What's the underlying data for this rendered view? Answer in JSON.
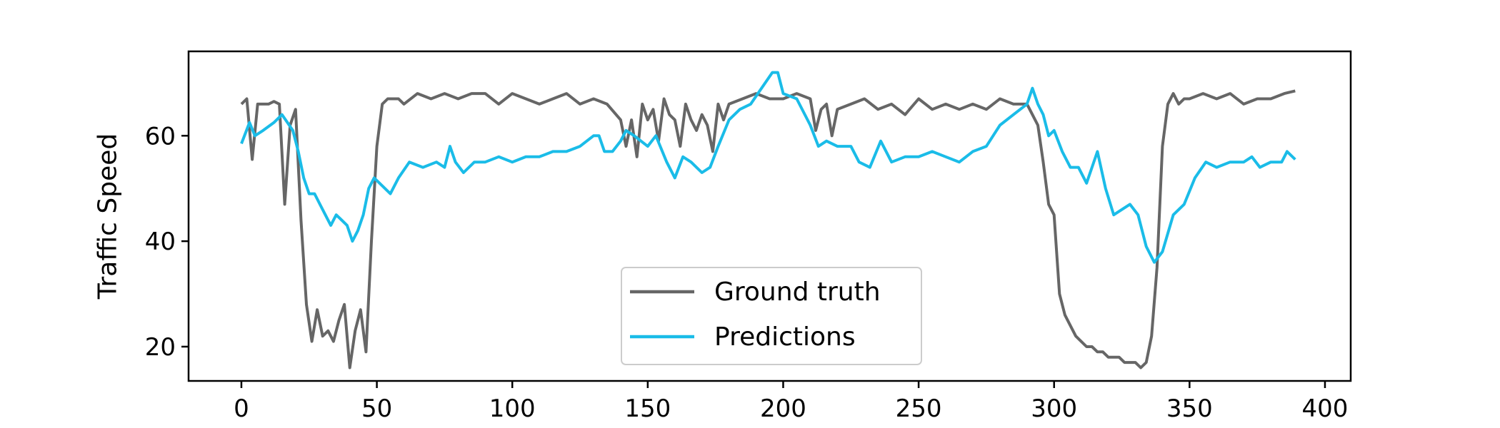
{
  "chart_data": {
    "type": "line",
    "xlabel": "",
    "ylabel": "Traffic Speed",
    "xlim": [
      -19.5,
      409.5
    ],
    "ylim": [
      13.5,
      76
    ],
    "xticks": [
      0,
      50,
      100,
      150,
      200,
      250,
      300,
      350,
      400
    ],
    "yticks": [
      20,
      40,
      60
    ],
    "grid": false,
    "legend_position": "bottom-center",
    "series": [
      {
        "name": "Ground truth",
        "color": "#666666",
        "x": [
          0,
          2,
          4,
          6,
          8,
          10,
          12,
          14,
          16,
          18,
          20,
          22,
          24,
          26,
          28,
          30,
          32,
          34,
          36,
          38,
          40,
          42,
          44,
          46,
          48,
          50,
          52,
          54,
          56,
          58,
          60,
          65,
          70,
          75,
          80,
          85,
          90,
          95,
          100,
          105,
          110,
          115,
          120,
          125,
          130,
          135,
          140,
          142,
          144,
          146,
          148,
          150,
          152,
          154,
          156,
          158,
          160,
          162,
          164,
          166,
          168,
          170,
          172,
          174,
          176,
          178,
          180,
          185,
          190,
          195,
          200,
          205,
          210,
          212,
          214,
          216,
          218,
          220,
          225,
          230,
          235,
          240,
          245,
          250,
          255,
          260,
          265,
          270,
          275,
          280,
          285,
          290,
          292,
          294,
          296,
          298,
          300,
          302,
          304,
          306,
          308,
          310,
          312,
          314,
          316,
          318,
          320,
          322,
          324,
          326,
          328,
          330,
          332,
          334,
          336,
          338,
          340,
          342,
          344,
          346,
          348,
          350,
          355,
          360,
          365,
          370,
          375,
          380,
          385,
          389
        ],
        "values": [
          66,
          67,
          55.5,
          66,
          66,
          66,
          66.5,
          66,
          47,
          62,
          65,
          44,
          28,
          21,
          27,
          22,
          23,
          21,
          25,
          28,
          16,
          23,
          27,
          19,
          40,
          58,
          66,
          67,
          67,
          67,
          66,
          68,
          67,
          68,
          67,
          68,
          68,
          66,
          68,
          67,
          66,
          67,
          68,
          66,
          67,
          66,
          63,
          58,
          63,
          56,
          66,
          63,
          65,
          59,
          67,
          64,
          63,
          58,
          66,
          63,
          61,
          64,
          62,
          57,
          66,
          63,
          66,
          67,
          68,
          67,
          67,
          68,
          67,
          61,
          65,
          66,
          60,
          65,
          66,
          67,
          65,
          66,
          64,
          67,
          65,
          66,
          65,
          66,
          65,
          67,
          66,
          66,
          64,
          62,
          55,
          47,
          45,
          30,
          26,
          24,
          22,
          21,
          20,
          20,
          19,
          19,
          18,
          18,
          18,
          17,
          17,
          17,
          16,
          17,
          22,
          35,
          58,
          66,
          68,
          66,
          67,
          67,
          68,
          67,
          68,
          66,
          67,
          67,
          68,
          68.5
        ]
      },
      {
        "name": "Predictions",
        "color": "#1ABCE8",
        "x": [
          0,
          3,
          5,
          8,
          12,
          15,
          17,
          19,
          21,
          23,
          25,
          27,
          29,
          31,
          33,
          35,
          37,
          39,
          41,
          43,
          45,
          47,
          49,
          51,
          55,
          58,
          62,
          67,
          72,
          75,
          77,
          79,
          82,
          86,
          90,
          95,
          100,
          105,
          110,
          115,
          120,
          125,
          130,
          132,
          134,
          137,
          140,
          142,
          145,
          150,
          153,
          157,
          160,
          163,
          166,
          170,
          173,
          176,
          180,
          184,
          188,
          192,
          196,
          198,
          200,
          205,
          210,
          213,
          216,
          220,
          225,
          228,
          232,
          236,
          240,
          245,
          250,
          255,
          260,
          265,
          270,
          275,
          280,
          285,
          290,
          292,
          294,
          296,
          298,
          300,
          303,
          306,
          309,
          312,
          316,
          319,
          322,
          325,
          328,
          331,
          334,
          337,
          340,
          344,
          348,
          352,
          356,
          360,
          365,
          370,
          373,
          376,
          380,
          384,
          386,
          389
        ],
        "values": [
          58.5,
          62.5,
          60,
          61,
          62.5,
          64,
          62.5,
          61,
          57,
          52,
          49,
          49,
          47,
          45,
          43,
          45,
          44,
          43,
          40,
          42,
          45,
          50,
          52,
          51,
          49,
          52,
          55,
          54,
          55,
          54,
          58,
          55,
          53,
          55,
          55,
          56,
          55,
          56,
          56,
          57,
          57,
          58,
          60,
          60,
          57,
          57,
          59,
          61,
          60,
          58,
          60,
          55,
          52,
          56,
          55,
          53,
          54,
          58,
          63,
          65,
          66,
          69,
          72,
          72,
          68,
          67,
          62,
          58,
          59,
          58,
          58,
          55,
          54,
          59,
          55,
          56,
          56,
          57,
          56,
          55,
          57,
          58,
          62,
          64,
          66,
          69,
          66,
          64,
          60,
          61,
          57,
          54,
          54,
          51,
          57,
          50,
          45,
          46,
          47,
          45,
          39,
          36,
          38,
          45,
          47,
          52,
          55,
          54,
          55,
          55,
          56,
          54,
          55,
          55,
          57,
          55.5
        ]
      }
    ]
  }
}
